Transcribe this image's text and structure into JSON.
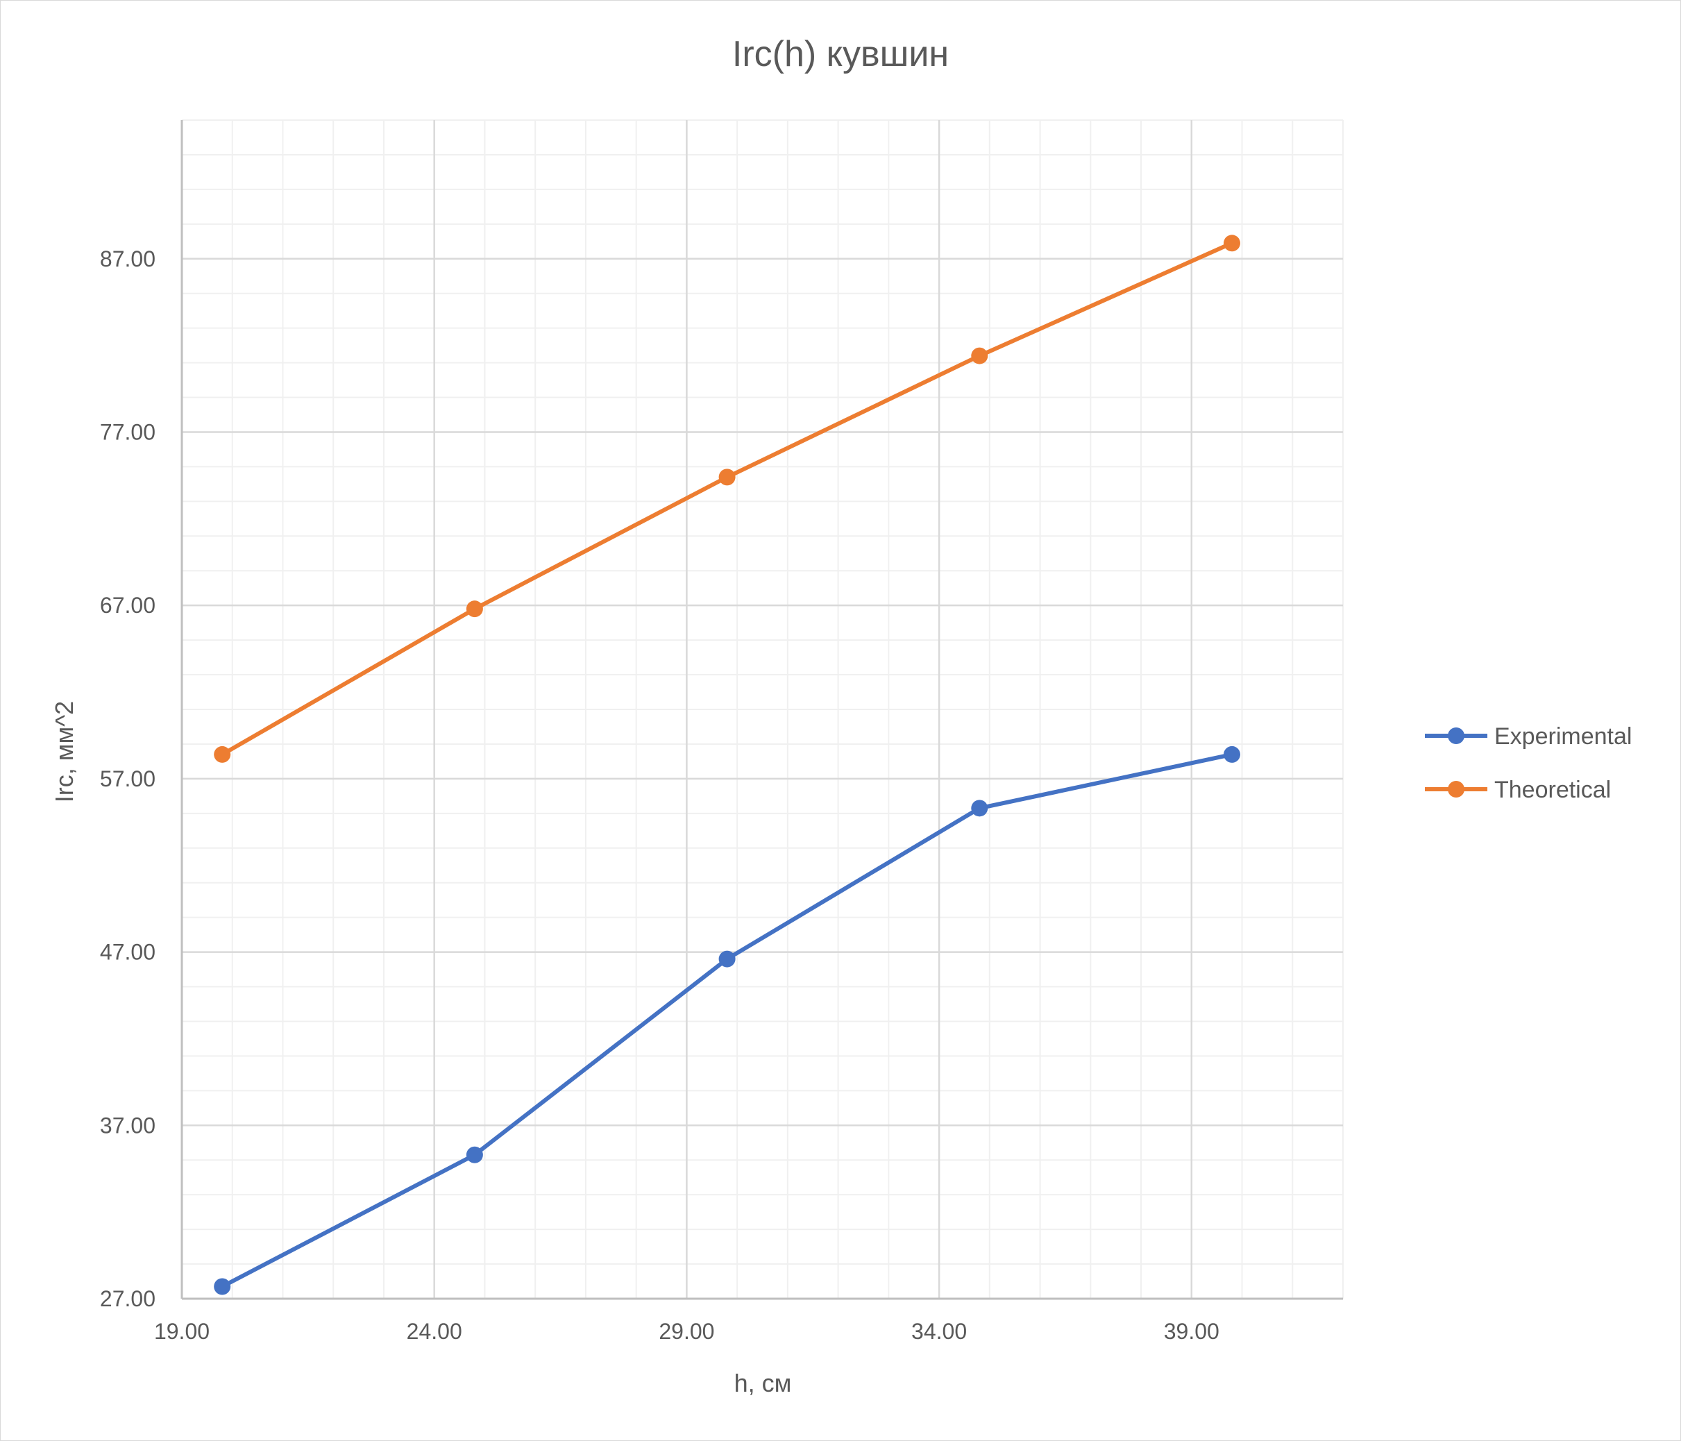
{
  "chart_data": {
    "type": "scatter",
    "title": "Irc(h) кувшин",
    "xlabel": "h, см",
    "ylabel": "Irc, мм^2",
    "xlim": [
      19,
      42
    ],
    "ylim": [
      27,
      95
    ],
    "x_major_step": 5,
    "x_minor_step": 1,
    "y_major_step": 10,
    "y_minor_step": 2,
    "x_ticks": [
      19,
      24,
      29,
      34,
      39
    ],
    "y_ticks": [
      27,
      37,
      47,
      57,
      67,
      77,
      87
    ],
    "tick_decimals": 2,
    "grid": true,
    "legend_position": "right",
    "series": [
      {
        "name": "Experimental",
        "color": "#4472c4",
        "x": [
          19.8,
          24.8,
          29.8,
          34.8,
          39.8
        ],
        "y": [
          27.7,
          35.3,
          46.6,
          55.3,
          58.4
        ]
      },
      {
        "name": "Theoretical",
        "color": "#ed7d31",
        "x": [
          19.8,
          24.8,
          29.8,
          34.8,
          39.8
        ],
        "y": [
          58.4,
          66.8,
          74.4,
          81.4,
          87.9
        ]
      }
    ]
  }
}
